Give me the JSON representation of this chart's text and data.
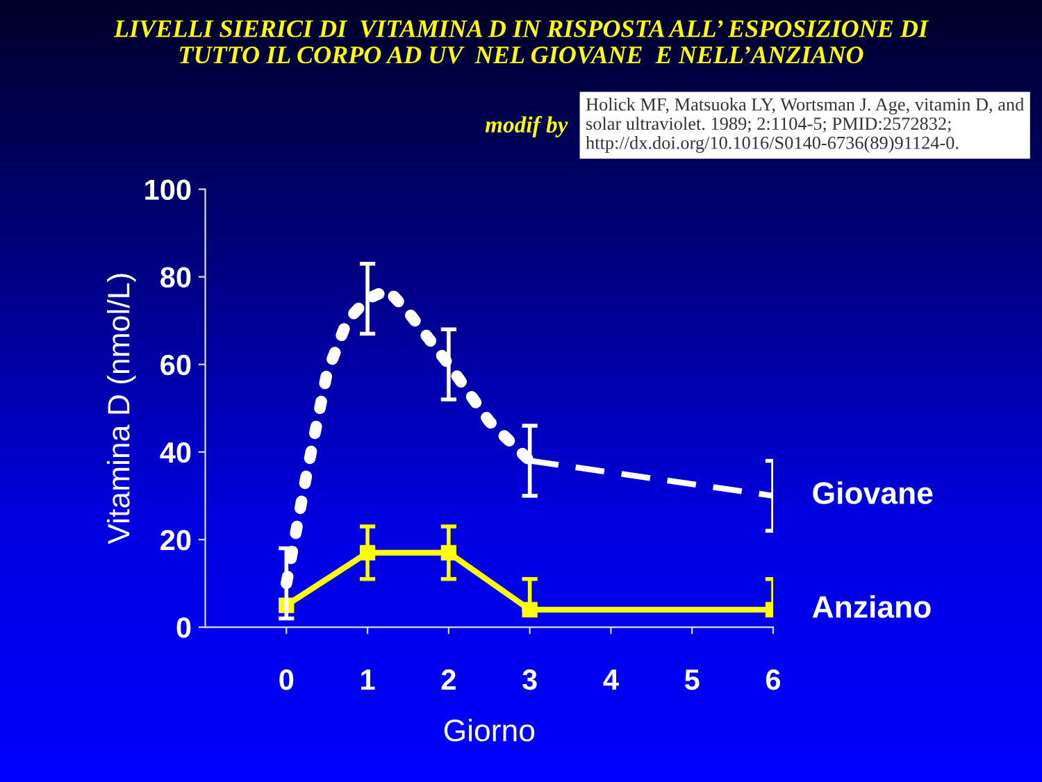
{
  "chart_data": {
    "type": "line",
    "title": "LIVELLI SIERICI DI  VITAMINA D IN RISPOSTA ALL’ ESPOSIZIONE DI\nTUTTO IL CORPO AD UV  NEL GIOVANE  E NELL’ANZIANO",
    "xlabel": "Giorno",
    "ylabel": "Vitamina D (nmol/L)",
    "annotations": [
      "modif by",
      "Holick MF, Matsuoka LY, Wortsman J. Age, vitamin D, and solar ultraviolet. 1989; 2:1104-5; PMID:2572832; http://dx.doi.org/10.1016/S0140-6736(89)91124-0."
    ],
    "xlim": [
      -1,
      6
    ],
    "xticks": [
      0,
      1,
      2,
      3,
      4,
      5,
      6
    ],
    "ylim": [
      0,
      100
    ],
    "yticks": [
      0,
      20,
      40,
      60,
      80,
      100
    ],
    "grid": false,
    "legend": false,
    "series": [
      {
        "color": "#ffffff",
        "line_style": "dotted",
        "marker": "none",
        "x": [
          0,
          0.25,
          0.5,
          0.75,
          1,
          1.25,
          1.5,
          2,
          2.5,
          3
        ],
        "values": [
          10,
          35,
          58,
          70,
          75,
          77,
          72,
          60,
          47,
          38
        ],
        "errors": [
          [
            2,
            18
          ],
          null,
          null,
          null,
          [
            67,
            83
          ],
          null,
          null,
          [
            52,
            68
          ],
          null,
          [
            30,
            46
          ]
        ]
      },
      {
        "name": "Giovane",
        "color": "#ffffff",
        "line_style": "dashed",
        "marker": "none",
        "x": [
          3,
          6
        ],
        "values": [
          38,
          30
        ],
        "errors": [
          null,
          [
            22,
            38
          ]
        ]
      },
      {
        "name": "Anziano",
        "color": "#ffff00",
        "line_style": "solid",
        "marker": "square",
        "x": [
          0,
          1,
          2,
          3,
          6
        ],
        "values": [
          5,
          17,
          17,
          4,
          4
        ],
        "errors": [
          null,
          [
            11,
            23
          ],
          [
            11,
            23
          ],
          [
            4,
            11
          ],
          [
            4,
            11
          ]
        ]
      }
    ]
  }
}
